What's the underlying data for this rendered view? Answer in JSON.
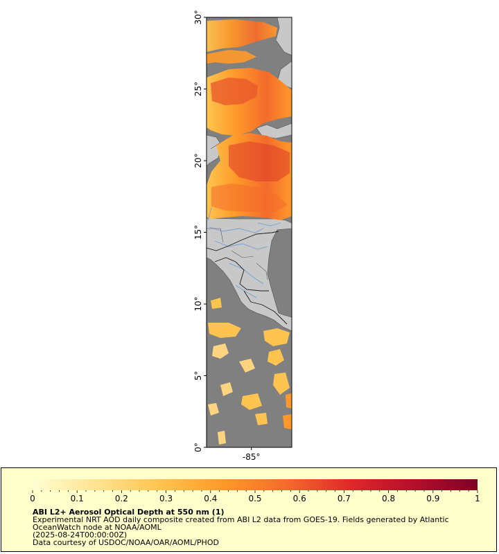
{
  "map": {
    "lat_ticks": [
      {
        "value": 0,
        "label": "0°"
      },
      {
        "value": 5,
        "label": "5°"
      },
      {
        "value": 10,
        "label": "10°"
      },
      {
        "value": 15,
        "label": "15°"
      },
      {
        "value": 20,
        "label": "20°"
      },
      {
        "value": 25,
        "label": "25°"
      },
      {
        "value": 30,
        "label": "30°"
      }
    ],
    "lon_ticks": [
      {
        "value": -85,
        "label": "-85°"
      }
    ],
    "lat_range": [
      0,
      30
    ],
    "lon_range": [
      -88,
      -82.3
    ],
    "colors": {
      "ocean_no_data": "#808080",
      "land": "#c8c8c8",
      "coast": "#606060",
      "rivers": "#6f9fd8",
      "borders": "#000000"
    }
  },
  "colorbar": {
    "ticks": [
      "0",
      "0.1",
      "0.2",
      "0.3",
      "0.4",
      "0.5",
      "0.6",
      "0.7",
      "0.8",
      "0.9",
      "1"
    ],
    "range": [
      0,
      1
    ],
    "colors": [
      "#ffffd4",
      "#fee391",
      "#fec44f",
      "#fe9929",
      "#f46b2b",
      "#e0282a",
      "#b40f2a",
      "#800026"
    ]
  },
  "caption": {
    "title": "ABI L2+ Aerosol Optical Depth at 550 nm (1)",
    "line1": "Experimental NRT AOD daily composite created from ABI L2 data from GOES-19. Fields generated by Atlantic",
    "line2": "OceanWatch node at NOAA/AOML",
    "line3": "(2025-08-24T00:00:00Z)",
    "line4": "Data courtesy of USDOC/NOAA/OAR/AOML/PHOD"
  }
}
